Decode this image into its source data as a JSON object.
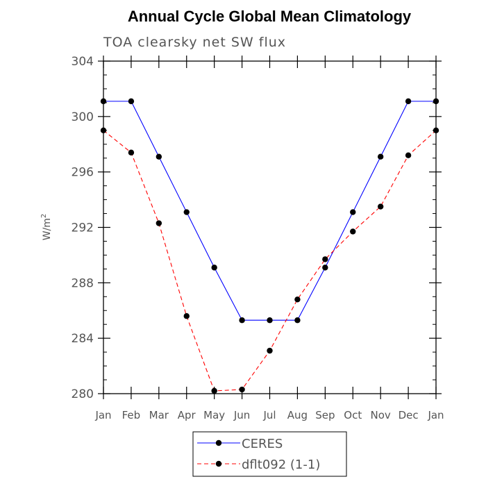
{
  "chart_data": {
    "type": "line",
    "title": "Annual Cycle Global Mean Climatology",
    "subtitle": "TOA clearsky net SW flux",
    "ylabel_base": "W/m",
    "ylabel_sup": "2",
    "xlabel": "",
    "categories": [
      "Jan",
      "Feb",
      "Mar",
      "Apr",
      "May",
      "Jun",
      "Jul",
      "Aug",
      "Sep",
      "Oct",
      "Nov",
      "Dec",
      "Jan"
    ],
    "ylim": [
      280,
      304
    ],
    "yticks": [
      "280",
      "284",
      "288",
      "292",
      "296",
      "300",
      "304"
    ],
    "legend_position": "bottom-center",
    "series": [
      {
        "name": "CERES",
        "color": "#0000ff",
        "dash": "solid",
        "values": [
          301.1,
          301.1,
          297.1,
          293.1,
          289.1,
          285.3,
          285.3,
          285.3,
          289.1,
          293.1,
          297.1,
          301.1,
          301.1
        ]
      },
      {
        "name": "dflt092 (1-1)",
        "color": "#ff0000",
        "dash": "dashed",
        "values": [
          299.0,
          297.4,
          292.3,
          285.6,
          280.2,
          280.3,
          283.1,
          286.8,
          289.7,
          291.7,
          293.5,
          297.2,
          299.0
        ]
      }
    ]
  }
}
